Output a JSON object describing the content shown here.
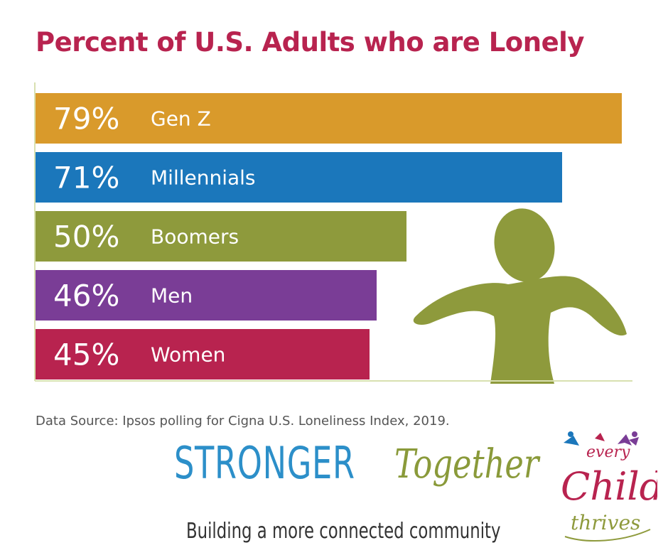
{
  "chart_data": {
    "type": "bar",
    "orientation": "horizontal",
    "title": "Percent of U.S. Adults who are Lonely",
    "categories": [
      "Gen Z",
      "Millennials",
      "Boomers",
      "Men",
      "Women"
    ],
    "values": [
      79,
      71,
      50,
      46,
      45
    ],
    "value_labels": [
      "79%",
      "71%",
      "50%",
      "46%",
      "45%"
    ],
    "colors": [
      "#d99a2b",
      "#1b77bb",
      "#8e9a3c",
      "#7a3d96",
      "#b8234f"
    ],
    "xlim": [
      0,
      79
    ],
    "grid": false,
    "legend": "none"
  },
  "source": "Data Source: Ipsos polling for Cigna U.S. Loneliness Index, 2019.",
  "brand": {
    "strong": "STRONGER",
    "together": "Together",
    "tagline": "Building a more connected community"
  },
  "logo": {
    "line1": "every",
    "line2": "Child",
    "line3": "thrives"
  },
  "colors": {
    "title": "#b8234f",
    "figure": "#8e9a3c",
    "axis": "#d8e0b0"
  }
}
